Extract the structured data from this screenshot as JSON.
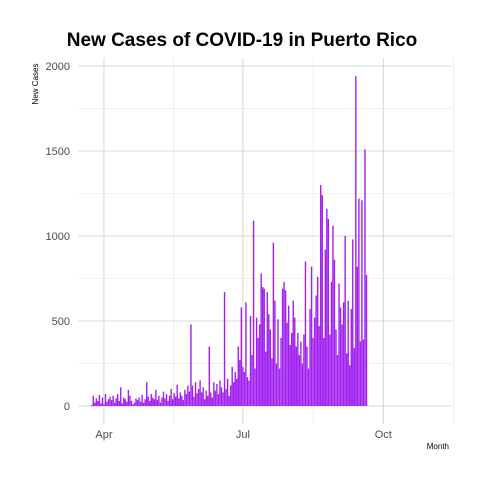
{
  "chart_data": {
    "type": "bar",
    "title": "New Cases of COVID-19 in Puerto Rico",
    "xlabel": "Month",
    "ylabel": "New Cases",
    "x_unit": "days since Mar 15",
    "xlim": [
      0,
      245
    ],
    "ylim": [
      0,
      2000
    ],
    "x_ticks": [
      {
        "label": "Apr",
        "x": 17
      },
      {
        "label": "Jul",
        "x": 108
      },
      {
        "label": "Oct",
        "x": 200
      }
    ],
    "y_ticks": [
      0,
      500,
      1000,
      1500,
      2000
    ],
    "color": "#a020f0",
    "start_day": 9,
    "values": [
      5,
      60,
      20,
      45,
      30,
      65,
      15,
      50,
      10,
      70,
      25,
      40,
      55,
      35,
      60,
      20,
      45,
      70,
      30,
      110,
      15,
      50,
      40,
      25,
      95,
      60,
      30,
      10,
      20,
      45,
      35,
      50,
      25,
      65,
      20,
      40,
      140,
      55,
      30,
      70,
      50,
      40,
      95,
      35,
      60,
      20,
      50,
      85,
      45,
      70,
      30,
      60,
      100,
      40,
      75,
      55,
      125,
      45,
      80,
      60,
      35,
      95,
      70,
      120,
      85,
      480,
      120,
      55,
      140,
      75,
      100,
      150,
      80,
      110,
      40,
      90,
      60,
      350,
      80,
      50,
      140,
      90,
      130,
      70,
      150,
      110,
      80,
      670,
      100,
      160,
      60,
      120,
      230,
      140,
      200,
      160,
      350,
      270,
      580,
      230,
      200,
      610,
      170,
      150,
      530,
      300,
      1090,
      220,
      520,
      400,
      480,
      780,
      700,
      690,
      320,
      670,
      540,
      450,
      280,
      960,
      620,
      250,
      510,
      220,
      400,
      690,
      730,
      680,
      490,
      590,
      360,
      430,
      620,
      520,
      350,
      430,
      300,
      380,
      250,
      420,
      850,
      350,
      220,
      570,
      820,
      400,
      520,
      650,
      760,
      470,
      1300,
      1240,
      400,
      920,
      1160,
      1100,
      420,
      730,
      1060,
      860,
      450,
      300,
      720,
      580,
      480,
      610,
      1000,
      310,
      620,
      240,
      570,
      980,
      340,
      1940,
      820,
      1220,
      380,
      1210,
      390,
      1510,
      770
    ]
  }
}
